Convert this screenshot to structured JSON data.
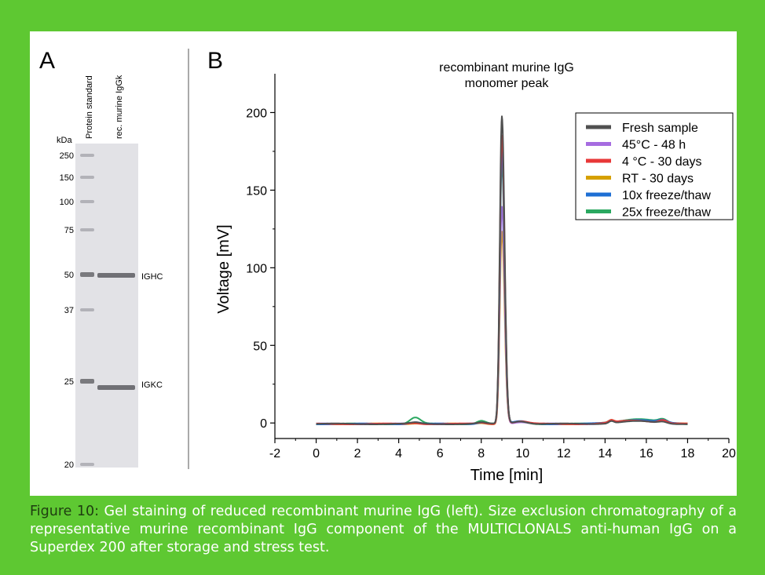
{
  "colors": {
    "background": "#5ec832",
    "caption_lead": "#1e3d10"
  },
  "panel_a": {
    "label": "A",
    "lane_labels": [
      "Protein standard",
      "rec. murine IgGk"
    ],
    "unit": "kDa",
    "markers": [
      "250",
      "150",
      "100",
      "75",
      "50",
      "37",
      "25",
      "20"
    ],
    "band_labels": [
      "IGHC",
      "IGKC"
    ]
  },
  "panel_b": {
    "label": "B"
  },
  "chart_data": {
    "type": "line",
    "title": "recombinant murine IgG",
    "subtitle": "monomer peak",
    "xlabel": "Time [min]",
    "ylabel": "Voltage [mV]",
    "xlim": [
      -2,
      20
    ],
    "ylim": [
      -10,
      225
    ],
    "xticks": [
      "-2",
      "0",
      "2",
      "4",
      "6",
      "8",
      "10",
      "12",
      "14",
      "16",
      "18",
      "20"
    ],
    "yticks": [
      "0",
      "50",
      "100",
      "150",
      "200"
    ],
    "legend_position": "top-right",
    "grid": false,
    "series": [
      {
        "name": "Fresh sample",
        "color": "#505050",
        "peak": 198,
        "bump4_8": 0.8
      },
      {
        "name": "45°C - 48 h",
        "color": "#a66ce0",
        "peak": 140,
        "bump4_8": 0.4
      },
      {
        "name": "4 °C - 30 days",
        "color": "#e83838",
        "peak": 186,
        "bump4_8": 0.6
      },
      {
        "name": "RT - 30 days",
        "color": "#d6a000",
        "peak": 124,
        "bump4_8": 0.5
      },
      {
        "name": "10x freeze/thaw",
        "color": "#1e6fd4",
        "peak": 175,
        "bump4_8": 1.2
      },
      {
        "name": "25x freeze/thaw",
        "color": "#2aa860",
        "peak": 168,
        "bump4_8": 4.0
      }
    ]
  },
  "caption": {
    "lead": "Figure 10:",
    "text": " Gel staining of reduced recombinant murine IgG (left). Size exclusion chromatography of a representative murine recombinant IgG component of  the MULTICLONALS anti-human IgG on a Superdex 200 after storage and stress test."
  }
}
